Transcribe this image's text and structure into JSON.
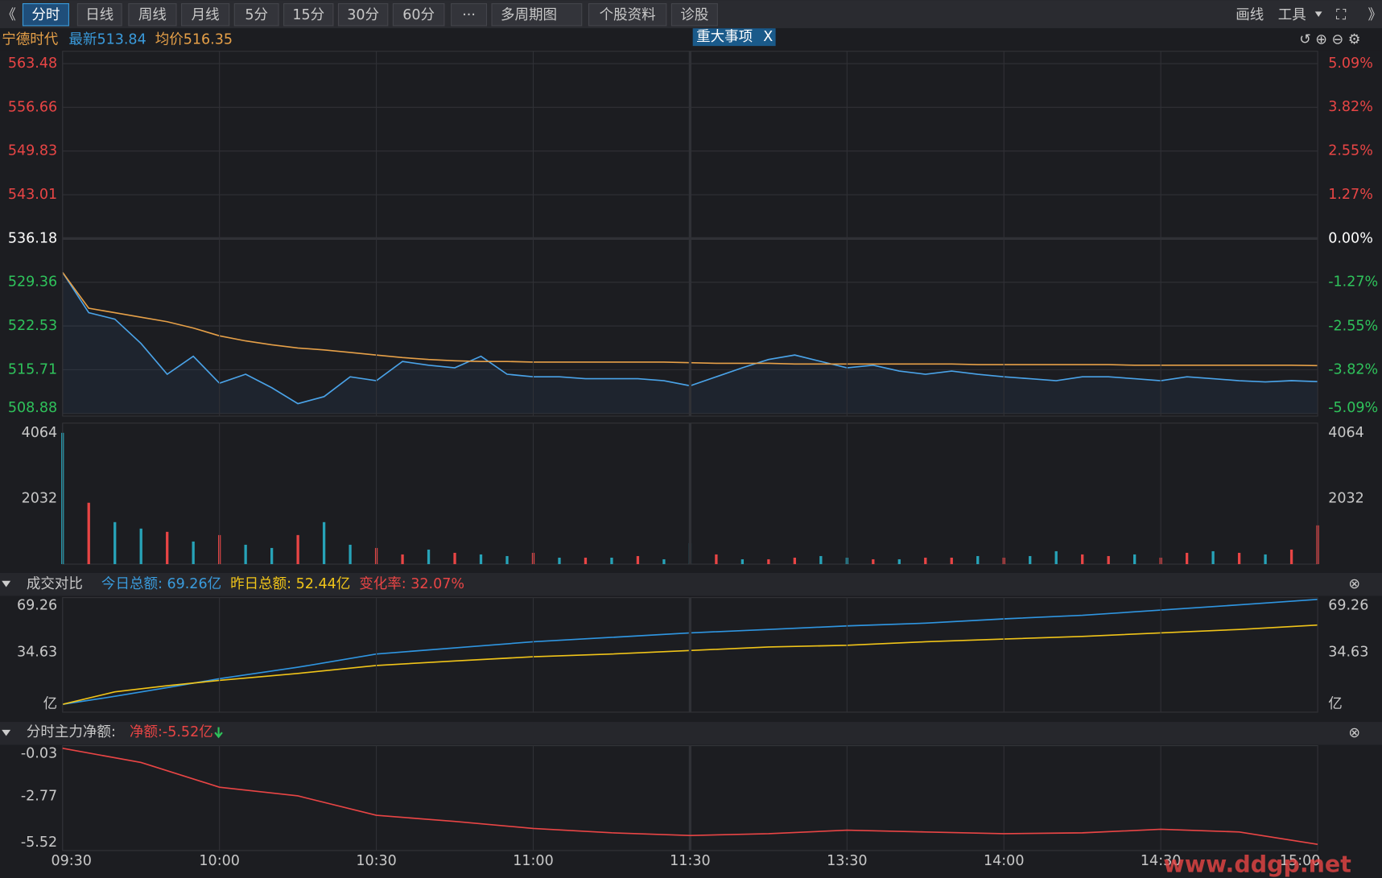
{
  "toolbar": {
    "tabs": [
      "分时",
      "日线",
      "周线",
      "月线",
      "5分",
      "15分",
      "30分",
      "60分",
      "···",
      "多周期图",
      "个股资料",
      "诊股"
    ],
    "selected": 0,
    "tools": [
      "画线",
      "工具"
    ]
  },
  "info": {
    "name": "宁德时代",
    "latest": "最新513.84",
    "avg": "均价516.35",
    "badge": "重大事项",
    "badge_close": "X",
    "watermark": "www.ddgp.net"
  },
  "chart_data": [
    {
      "type": "line",
      "xlim": [
        0,
        240
      ],
      "ylim": [
        508.88,
        563.48
      ],
      "yticks": [
        563.48,
        556.66,
        549.83,
        543.01,
        536.18,
        529.36,
        522.53,
        515.71,
        508.88
      ],
      "y2lim": [
        -5.09,
        5.09
      ],
      "y2ticks": [
        {
          "value": 5.09,
          "label": "5.09%"
        },
        {
          "value": 3.82,
          "label": "3.82%"
        },
        {
          "value": 2.55,
          "label": "2.55%"
        },
        {
          "value": 1.27,
          "label": "1.27%"
        },
        {
          "value": 0,
          "label": "0.00%"
        },
        {
          "value": -1.27,
          "label": "-1.27%"
        },
        {
          "value": -2.55,
          "label": "-2.55%"
        },
        {
          "value": -3.82,
          "label": "-3.82%"
        },
        {
          "value": -5.09,
          "label": "-5.09%"
        }
      ],
      "grid": true,
      "x": [
        0,
        5,
        10,
        15,
        20,
        25,
        30,
        35,
        40,
        45,
        50,
        55,
        60,
        65,
        70,
        75,
        80,
        85,
        90,
        95,
        100,
        105,
        110,
        115,
        120,
        125,
        130,
        135,
        140,
        145,
        150,
        155,
        160,
        165,
        170,
        175,
        180,
        185,
        190,
        195,
        200,
        205,
        210,
        215,
        220,
        225,
        230,
        235,
        240
      ],
      "series": [
        {
          "color": "#4aa3e8",
          "area": true,
          "values": [
            530.9,
            524.6,
            523.6,
            519.8,
            515.0,
            517.8,
            513.6,
            515.0,
            512.9,
            510.4,
            511.5,
            514.6,
            514.0,
            517.0,
            516.4,
            516.0,
            517.8,
            515.0,
            514.6,
            514.6,
            514.3,
            514.3,
            514.3,
            514.0,
            513.2,
            514.6,
            516.0,
            517.3,
            518.0,
            517.0,
            516.0,
            516.4,
            515.5,
            515.0,
            515.5,
            515.0,
            514.6,
            514.3,
            514.0,
            514.6,
            514.6,
            514.3,
            514.0,
            514.6,
            514.3,
            514.0,
            513.8,
            514.0,
            513.84
          ]
        },
        {
          "color": "#e6a048",
          "values": [
            530.9,
            525.3,
            524.6,
            523.9,
            523.2,
            522.2,
            521.0,
            520.2,
            519.6,
            519.1,
            518.8,
            518.4,
            518.0,
            517.6,
            517.3,
            517.1,
            517.0,
            517.0,
            516.9,
            516.9,
            516.9,
            516.9,
            516.9,
            516.9,
            516.8,
            516.7,
            516.7,
            516.7,
            516.6,
            516.6,
            516.6,
            516.6,
            516.6,
            516.6,
            516.6,
            516.5,
            516.5,
            516.5,
            516.5,
            516.5,
            516.5,
            516.4,
            516.4,
            516.4,
            516.4,
            516.4,
            516.4,
            516.4,
            516.35
          ]
        }
      ]
    },
    {
      "type": "bar",
      "xlim": [
        0,
        240
      ],
      "ylim": [
        0,
        4064
      ],
      "yticks": [
        4064,
        2032
      ],
      "mirror_ticks": true,
      "x": [
        0,
        5,
        10,
        15,
        20,
        25,
        30,
        35,
        40,
        45,
        50,
        55,
        60,
        65,
        70,
        75,
        80,
        85,
        90,
        95,
        100,
        105,
        110,
        115,
        120,
        125,
        130,
        135,
        140,
        145,
        150,
        155,
        160,
        165,
        170,
        175,
        180,
        185,
        190,
        195,
        200,
        205,
        210,
        215,
        220,
        225,
        230,
        235,
        240
      ],
      "values": [
        4064,
        1900,
        1300,
        1100,
        1000,
        700,
        900,
        600,
        500,
        900,
        1300,
        600,
        500,
        300,
        450,
        350,
        300,
        250,
        350,
        200,
        200,
        200,
        250,
        150,
        650,
        300,
        150,
        150,
        200,
        250,
        200,
        150,
        150,
        200,
        200,
        250,
        200,
        250,
        400,
        300,
        250,
        300,
        200,
        350,
        400,
        350,
        300,
        450,
        1200
      ],
      "colors": [
        "#27a3b8",
        "#e84545",
        "#27a3b8",
        "#27a3b8",
        "#e84545",
        "#27a3b8",
        "#e84545",
        "#27a3b8",
        "#27a3b8",
        "#e84545",
        "#27a3b8",
        "#27a3b8",
        "#e84545",
        "#e84545",
        "#27a3b8",
        "#e84545",
        "#27a3b8",
        "#27a3b8",
        "#e84545",
        "#27a3b8",
        "#e84545",
        "#27a3b8",
        "#e84545",
        "#27a3b8",
        "#27a3b8",
        "#e84545",
        "#27a3b8",
        "#e84545",
        "#e84545",
        "#27a3b8",
        "#27a3b8",
        "#e84545",
        "#27a3b8",
        "#e84545",
        "#e84545",
        "#27a3b8",
        "#e84545",
        "#27a3b8",
        "#27a3b8",
        "#e84545",
        "#e84545",
        "#27a3b8",
        "#e84545",
        "#e84545",
        "#27a3b8",
        "#e84545",
        "#27a3b8",
        "#e84545",
        "#e84545"
      ]
    },
    {
      "type": "line",
      "title": "成交对比",
      "annotations": [
        {
          "text": "今日总额: 69.26亿",
          "color": "#3a9bdc"
        },
        {
          "text": "昨日总额: 52.44亿",
          "color": "#f0c419"
        },
        {
          "text": "变化率: 32.07%",
          "color": "#e84545"
        }
      ],
      "xlim": [
        0,
        240
      ],
      "ylim": [
        0,
        69.26
      ],
      "yticks": [
        69.26,
        34.63,
        {
          "value": 0,
          "label": "亿"
        }
      ],
      "mirror_ticks": true,
      "x": [
        0,
        10,
        20,
        30,
        45,
        60,
        75,
        90,
        105,
        120,
        135,
        150,
        165,
        180,
        195,
        210,
        225,
        240
      ],
      "series": [
        {
          "color": "#2f95e0",
          "values": [
            0.5,
            5.8,
            11.5,
            17.3,
            24.8,
            33.5,
            37.5,
            41.5,
            44.4,
            47.3,
            49.6,
            51.9,
            53.7,
            56.5,
            58.8,
            62.3,
            65.7,
            69.26
          ]
        },
        {
          "color": "#f0c419",
          "values": [
            0.5,
            8.7,
            12.7,
            16.2,
            20.8,
            26.0,
            28.9,
            31.7,
            33.5,
            35.8,
            38.1,
            39.2,
            41.5,
            43.3,
            45.0,
            47.3,
            49.6,
            52.44
          ]
        }
      ]
    },
    {
      "type": "line",
      "title": "分时主力净额:",
      "annotations": [
        {
          "text": "净额:-5.52亿",
          "color": "#e84545"
        }
      ],
      "xlim": [
        0,
        240
      ],
      "ylim": [
        -5.52,
        -0.03
      ],
      "yticks": [
        -0.03,
        -2.77,
        -5.52
      ],
      "xticks": [
        {
          "value": 0,
          "label": "09:30"
        },
        {
          "value": 30,
          "label": "10:00"
        },
        {
          "value": 60,
          "label": "10:30"
        },
        {
          "value": 90,
          "label": "11:00"
        },
        {
          "value": 120,
          "label": "11:30"
        },
        {
          "value": 150,
          "label": "13:30"
        },
        {
          "value": 180,
          "label": "14:00"
        },
        {
          "value": 210,
          "label": "14:30"
        },
        {
          "value": 240,
          "label": "15:00"
        }
      ],
      "x": [
        0,
        15,
        30,
        45,
        60,
        75,
        90,
        105,
        120,
        135,
        150,
        165,
        180,
        195,
        210,
        225,
        240
      ],
      "series": [
        {
          "color": "#e84545",
          "values": [
            -0.03,
            -0.84,
            -2.25,
            -2.75,
            -3.86,
            -4.21,
            -4.61,
            -4.86,
            -5.01,
            -4.91,
            -4.71,
            -4.81,
            -4.91,
            -4.86,
            -4.66,
            -4.81,
            -5.52
          ]
        }
      ]
    }
  ]
}
